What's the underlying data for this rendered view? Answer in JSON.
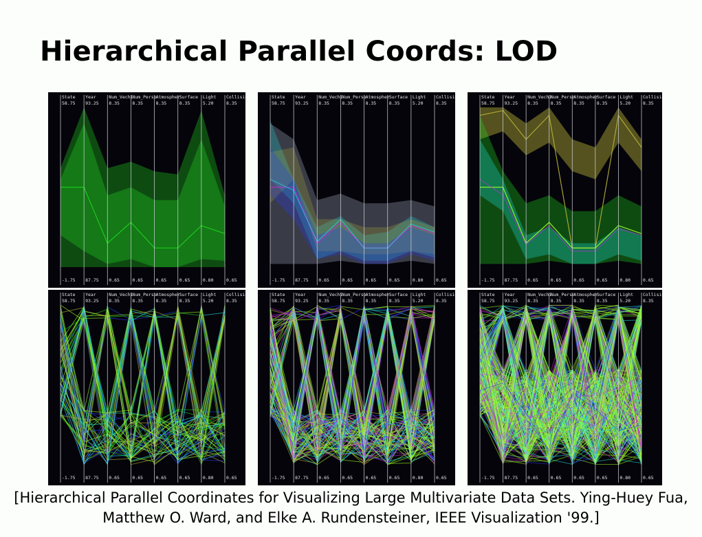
{
  "slide": {
    "title": "Hierarchical Parallel Coords: LOD",
    "caption_line1": "[Hierarchical Parallel Coordinates for Visualizing Large Multivariate Data Sets. Ying-Huey Fua,",
    "caption_line2": "Matthew O. Ward, and Elke A. Rundensteiner, IEEE Visualization '99.]"
  },
  "plot": {
    "axes": [
      {
        "name": "State",
        "max": "58.75",
        "min": "-1.75"
      },
      {
        "name": "Year",
        "max": "93.25",
        "min": "87.75"
      },
      {
        "name": "Num_Vechi",
        "max": "8.35",
        "min": "0.65"
      },
      {
        "name": "Num_Perso",
        "max": "8.35",
        "min": "0.65"
      },
      {
        "name": "Atmospher",
        "max": "8.35",
        "min": "0.65"
      },
      {
        "name": "Surface",
        "max": "8.35",
        "min": "0.65"
      },
      {
        "name": "Light",
        "max": "5.20",
        "min": "0.80"
      },
      {
        "name": "Collision",
        "max": "8.35",
        "min": "0.65"
      }
    ],
    "colors": {
      "green": "#1fd21f",
      "lime": "#9cff2a",
      "cyan": "#1fe6e6",
      "olive": "#b8b23a",
      "magenta": "#c42ad8",
      "blue": "#2a3cf0",
      "grey": "#9aa3b8"
    }
  },
  "panels": [
    {
      "id": "lod-1"
    },
    {
      "id": "lod-2"
    },
    {
      "id": "lod-3"
    },
    {
      "id": "lod-4"
    },
    {
      "id": "lod-5"
    },
    {
      "id": "lod-6"
    }
  ]
}
